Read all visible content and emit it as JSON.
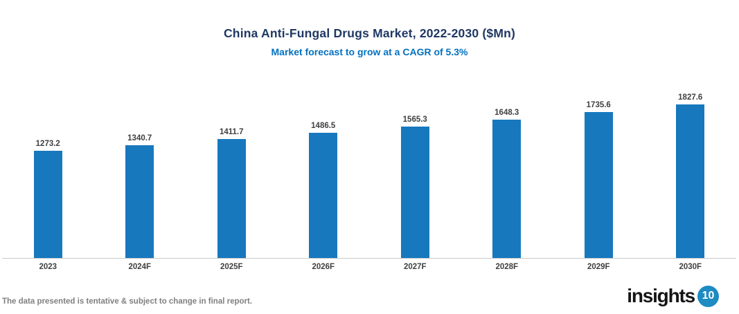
{
  "title": "China Anti-Fungal Drugs Market, 2022-2030 ($Mn)",
  "subtitle": "Market forecast to grow at a CAGR of 5.3%",
  "footer_note": "The data presented is tentative & subject to change in final report.",
  "logo": {
    "text": "insights",
    "badge": "10"
  },
  "colors": {
    "bar": "#1778BE",
    "title": "#1F3864",
    "subtitle": "#0070C0",
    "label": "#3F3F3F",
    "footer": "#808080",
    "axis": "#C9C9C9",
    "logo_badge": "#1E8BC3"
  },
  "chart_data": {
    "type": "bar",
    "categories": [
      "2023",
      "2024F",
      "2025F",
      "2026F",
      "2027F",
      "2028F",
      "2029F",
      "2030F"
    ],
    "values": [
      1273.2,
      1340.7,
      1411.7,
      1486.5,
      1565.3,
      1648.3,
      1735.6,
      1827.6
    ],
    "title": "China Anti-Fungal Drugs Market, 2022-2030 ($Mn)",
    "subtitle": "Market forecast to grow at a CAGR of 5.3%",
    "xlabel": "",
    "ylabel": "",
    "ylim": [
      0,
      2000
    ],
    "grid": false,
    "legend": false,
    "data_labels": true,
    "data_label_decimals": 1,
    "bar_color": "#1778BE"
  }
}
